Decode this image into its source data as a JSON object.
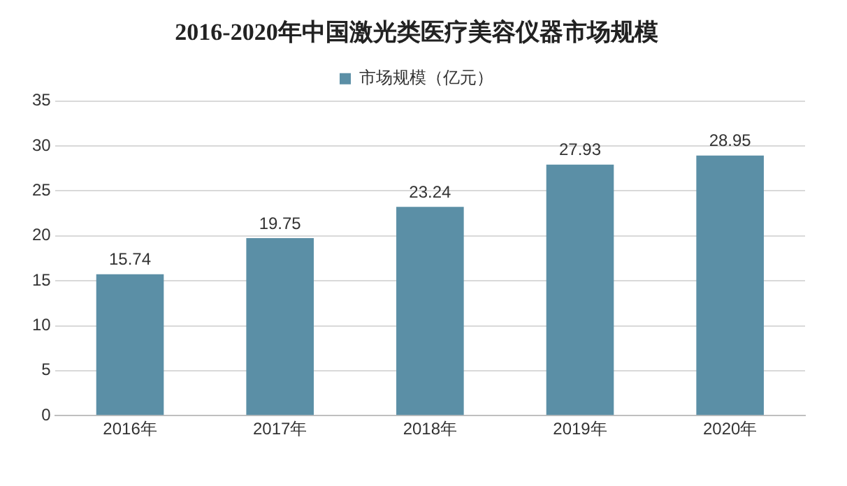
{
  "chart_data": {
    "type": "bar",
    "title": "2016-2020年中国激光类医疗美容仪器市场规模",
    "categories": [
      "2016年",
      "2017年",
      "2018年",
      "2019年",
      "2020年"
    ],
    "series": [
      {
        "name": "市场规模（亿元）",
        "color": "#5b8fa6",
        "values": [
          15.74,
          19.75,
          23.24,
          27.93,
          28.95
        ]
      }
    ],
    "ylim": [
      0,
      35
    ],
    "yticks": [
      0,
      5,
      10,
      15,
      20,
      25,
      30,
      35
    ],
    "grid": "y",
    "legend": "top",
    "data_labels": true
  }
}
